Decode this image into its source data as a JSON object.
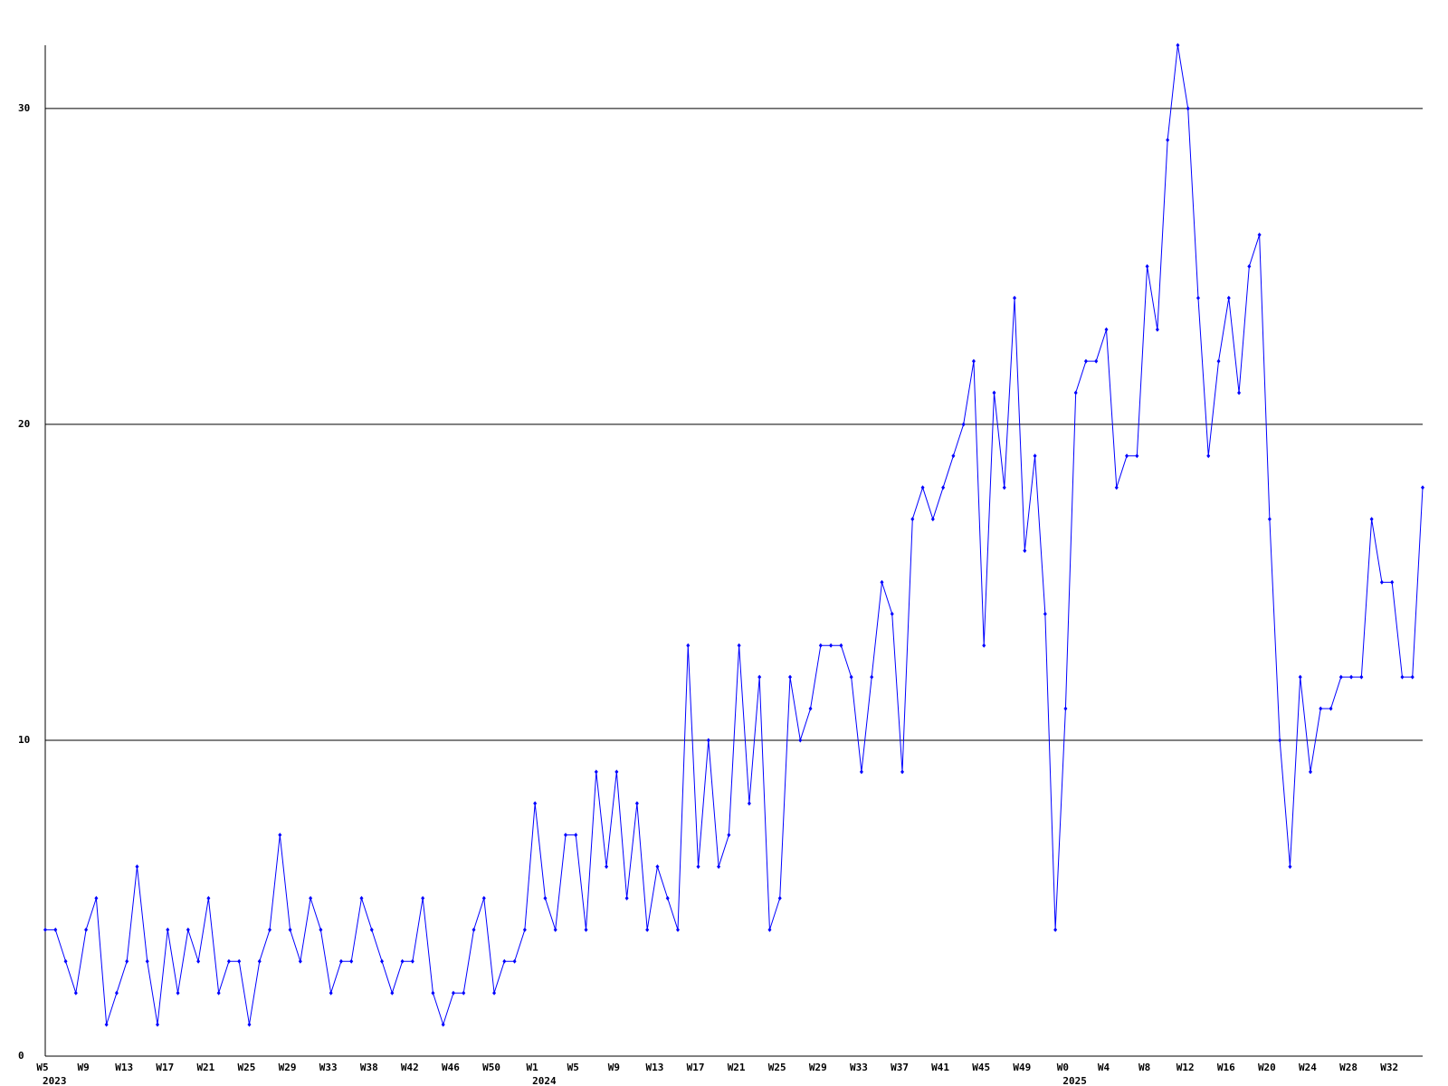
{
  "chart_data": {
    "type": "line",
    "categories": [
      "W5",
      null,
      null,
      null,
      "W9",
      null,
      null,
      null,
      "W13",
      null,
      null,
      null,
      "W17",
      null,
      null,
      null,
      "W21",
      null,
      null,
      null,
      "W25",
      null,
      null,
      null,
      "W29",
      null,
      null,
      null,
      "W33",
      null,
      null,
      null,
      "W38",
      null,
      null,
      null,
      "W42",
      null,
      null,
      null,
      "W46",
      null,
      null,
      null,
      "W50",
      null,
      null,
      null,
      "W1",
      null,
      null,
      null,
      "W5",
      null,
      null,
      null,
      "W9",
      null,
      null,
      null,
      "W13",
      null,
      null,
      null,
      "W17",
      null,
      null,
      null,
      "W21",
      null,
      null,
      null,
      "W25",
      null,
      null,
      null,
      "W29",
      null,
      null,
      null,
      "W33",
      null,
      null,
      null,
      "W37",
      null,
      null,
      null,
      "W41",
      null,
      null,
      null,
      "W45",
      null,
      null,
      null,
      "W49",
      null,
      null,
      null,
      "W0",
      null,
      null,
      null,
      "W4",
      null,
      null,
      null,
      "W8",
      null,
      null,
      null,
      "W12",
      null,
      null,
      null,
      "W16",
      null,
      null,
      null,
      "W20",
      null,
      null,
      null,
      "W24",
      null,
      null,
      null,
      "W28",
      null,
      null,
      null,
      "W32",
      null,
      null,
      null
    ],
    "category_years": [
      "2023",
      null,
      null,
      null,
      null,
      null,
      null,
      null,
      null,
      null,
      null,
      null,
      null,
      null,
      null,
      null,
      null,
      null,
      null,
      null,
      null,
      null,
      null,
      null,
      null,
      null,
      null,
      null,
      null,
      null,
      null,
      null,
      null,
      null,
      null,
      null,
      null,
      null,
      null,
      null,
      null,
      null,
      null,
      null,
      null,
      null,
      null,
      null,
      "2024",
      null,
      null,
      null,
      null,
      null,
      null,
      null,
      null,
      null,
      null,
      null,
      null,
      null,
      null,
      null,
      null,
      null,
      null,
      null,
      null,
      null,
      null,
      null,
      null,
      null,
      null,
      null,
      null,
      null,
      null,
      null,
      null,
      null,
      null,
      null,
      null,
      null,
      null,
      null,
      null,
      null,
      null,
      null,
      null,
      null,
      null,
      null,
      null,
      null,
      null,
      null,
      "2025",
      null,
      null,
      null,
      null,
      null,
      null,
      null,
      null,
      null,
      null,
      null,
      null,
      null,
      null,
      null,
      null,
      null,
      null,
      null,
      null,
      null,
      null,
      null,
      null,
      null,
      null,
      null,
      null,
      null,
      null,
      null,
      null,
      null,
      null,
      null
    ],
    "series": [
      {
        "color": "#0000ff",
        "values": [
          4,
          4,
          3,
          2,
          4,
          5,
          1,
          2,
          3,
          6,
          3,
          1,
          4,
          2,
          4,
          3,
          5,
          2,
          3,
          3,
          1,
          3,
          4,
          7,
          4,
          3,
          5,
          4,
          2,
          3,
          3,
          5,
          4,
          3,
          2,
          3,
          3,
          5,
          2,
          1,
          2,
          2,
          4,
          5,
          2,
          3,
          3,
          4,
          8,
          5,
          4,
          7,
          7,
          4,
          9,
          6,
          9,
          5,
          8,
          4,
          6,
          5,
          4,
          13,
          6,
          10,
          6,
          7,
          13,
          8,
          12,
          4,
          5,
          12,
          10,
          11,
          13,
          13,
          13,
          12,
          9,
          12,
          15,
          14,
          9,
          17,
          18,
          17,
          18,
          19,
          20,
          22,
          13,
          21,
          18,
          24,
          16,
          19,
          14,
          4,
          11,
          21,
          22,
          22,
          23,
          18,
          19,
          19,
          25,
          23,
          29,
          32,
          30,
          24,
          19,
          22,
          24,
          21,
          25,
          26,
          17,
          10,
          6,
          12,
          9,
          11,
          11,
          12,
          12,
          12,
          17,
          15,
          15,
          12,
          12,
          18
        ]
      }
    ],
    "ylim": [
      0,
      32
    ],
    "yticks": [
      0,
      10,
      20,
      30
    ],
    "grid": true
  }
}
